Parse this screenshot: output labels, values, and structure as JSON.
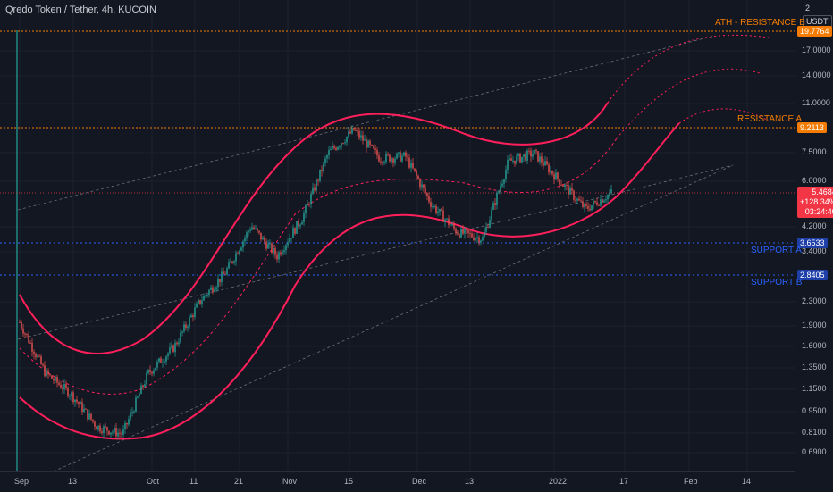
{
  "header": {
    "symbol_title": "Qredo Token / Tether, 4h, KUCOIN",
    "currency": "2",
    "unit_badge": "USDT"
  },
  "price_axis": {
    "labels": [
      "17.0000",
      "14.0000",
      "11.0000",
      "7.5000",
      "6.0000",
      "4.2000",
      "3.4000",
      "2.3000",
      "1.9000",
      "1.6000",
      "1.3500",
      "1.1500",
      "0.9500",
      "0.8100",
      "0.6900"
    ],
    "tags": [
      {
        "value": "19.7764",
        "color": "#f57c00"
      },
      {
        "value": "9.2113",
        "color": "#f57c00"
      },
      {
        "value": "3.6533",
        "color": "#1e3ea8"
      },
      {
        "value": "2.8405",
        "color": "#1e3ea8"
      }
    ],
    "current": {
      "price": "5.4684",
      "change": "+128.34%",
      "countdown": "03:24:40",
      "color": "#f23645"
    }
  },
  "time_axis": {
    "labels": [
      "Sep",
      "13",
      "Oct",
      "11",
      "21",
      "Nov",
      "15",
      "Dec",
      "13",
      "2022",
      "17",
      "Feb",
      "14"
    ]
  },
  "zones": {
    "resistance_b": "ATH - RESISTANCE B",
    "resistance_a": "RESISTANCE A",
    "support_a": "SUPPORT A",
    "support_b": "SUPPORT B"
  },
  "chart_data": {
    "type": "line",
    "series": [
      {
        "values": [
          1.95,
          1.3,
          1.1,
          0.85,
          0.8,
          1.3,
          1.6,
          2.3,
          2.9,
          4.2,
          3.3,
          4.5,
          7.5,
          9.0,
          7.2,
          7.3,
          5.0,
          4.0,
          3.8,
          7.0,
          7.5,
          6.0,
          4.8,
          5.4684
        ]
      }
    ],
    "annotations": {
      "resistance_b": 19.7764,
      "resistance_a": 9.2113,
      "support_a": 3.6533,
      "support_b": 2.8405
    },
    "colors": {
      "up": "#26a69a",
      "down": "#ef5350",
      "channel": "#ff1f5a",
      "resistance": "#f57c00",
      "support": "#2962ff"
    },
    "scale": "log",
    "grid": true
  }
}
